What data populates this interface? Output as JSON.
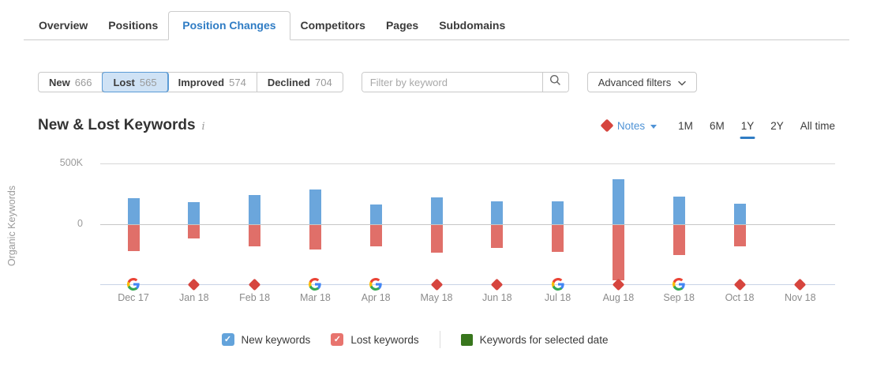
{
  "tabs": {
    "items": [
      {
        "label": "Overview",
        "active": false
      },
      {
        "label": "Positions",
        "active": false
      },
      {
        "label": "Position Changes",
        "active": true
      },
      {
        "label": "Competitors",
        "active": false
      },
      {
        "label": "Pages",
        "active": false
      },
      {
        "label": "Subdomains",
        "active": false
      }
    ]
  },
  "filter_bar": {
    "segments": [
      {
        "label": "New",
        "count": "666",
        "selected": false
      },
      {
        "label": "Lost",
        "count": "565",
        "selected": true
      },
      {
        "label": "Improved",
        "count": "574",
        "selected": false
      },
      {
        "label": "Declined",
        "count": "704",
        "selected": false
      }
    ],
    "search": {
      "placeholder": "Filter by keyword",
      "value": ""
    },
    "advanced_filters_label": "Advanced filters"
  },
  "chart_header": {
    "title": "New & Lost Keywords",
    "info_glyph": "i",
    "notes_label": "Notes",
    "ranges": [
      {
        "label": "1M",
        "active": false
      },
      {
        "label": "6M",
        "active": false
      },
      {
        "label": "1Y",
        "active": true
      },
      {
        "label": "2Y",
        "active": false
      },
      {
        "label": "All time",
        "active": false
      }
    ]
  },
  "chart_data": {
    "type": "bar",
    "title": "New & Lost Keywords",
    "ylabel": "Organic Keywords",
    "ylim_k": [
      -500,
      500
    ],
    "y_ticks": [
      {
        "label": "500K",
        "value_k": 500
      },
      {
        "label": "0",
        "value_k": 0
      }
    ],
    "categories": [
      "Dec 17",
      "Jan 18",
      "Feb 18",
      "Mar 18",
      "Apr 18",
      "May 18",
      "Jun 18",
      "Jul 18",
      "Aug 18",
      "Sep 18",
      "Oct 18",
      "Nov 18"
    ],
    "series": [
      {
        "name": "New keywords",
        "color": "#6ba6dc",
        "direction": "up",
        "values_k": [
          215,
          185,
          240,
          285,
          160,
          220,
          190,
          190,
          370,
          225,
          170,
          0
        ]
      },
      {
        "name": "Lost keywords",
        "color": "#e06f69",
        "direction": "down",
        "values_k": [
          215,
          110,
          175,
          200,
          175,
          230,
          190,
          220,
          455,
          245,
          175,
          0
        ]
      }
    ],
    "x_markers": [
      "google",
      "note",
      "note",
      "google",
      "google",
      "note",
      "note",
      "google",
      "note",
      "google",
      "note",
      "note"
    ],
    "legend_position": "bottom",
    "grid": true
  },
  "legend": {
    "items": [
      {
        "label": "New keywords",
        "type": "checkbox",
        "color": "#63a3db",
        "checked": true
      },
      {
        "label": "Lost keywords",
        "type": "checkbox",
        "color": "#e8746e",
        "checked": true
      },
      {
        "label": "Keywords for selected date",
        "type": "square",
        "color": "#38761d"
      }
    ]
  },
  "icons": {
    "check": "✓"
  },
  "colors": {
    "accent_blue": "#2f7cc4",
    "notes_blue": "#4f93d6",
    "note_red": "#d6453e",
    "selected_segment_bg": "#cfe2f5",
    "selected_segment_border": "#5b9bd5",
    "bar_blue": "#6ba6dc",
    "bar_red": "#e06f69",
    "selected_date_green": "#38761d"
  }
}
